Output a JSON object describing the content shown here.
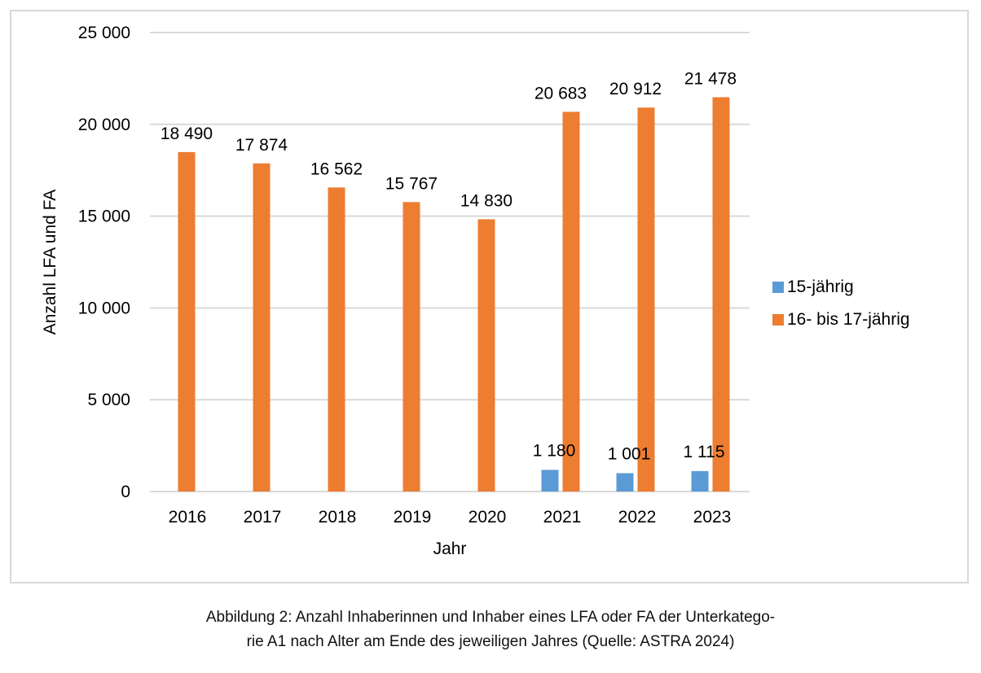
{
  "chart_data": {
    "type": "bar",
    "title": "",
    "xlabel": "Jahr",
    "ylabel": "Anzahl LFA und FA",
    "ylim": [
      0,
      25000
    ],
    "yticks": [
      0,
      5000,
      10000,
      15000,
      20000,
      25000
    ],
    "ytick_labels": [
      "0",
      "5 000",
      "10 000",
      "15 000",
      "20 000",
      "25 000"
    ],
    "grid": true,
    "legend_position": "right",
    "categories": [
      "2016",
      "2017",
      "2018",
      "2019",
      "2020",
      "2021",
      "2022",
      "2023"
    ],
    "series": [
      {
        "name": "15-jährig",
        "color": "#5b9bd5",
        "values": [
          null,
          null,
          null,
          null,
          null,
          1180,
          1001,
          1115
        ],
        "labels": [
          "",
          "",
          "",
          "",
          "",
          "1 180",
          "1 001",
          "1 115"
        ]
      },
      {
        "name": "16- bis 17-jährig",
        "color": "#ed7d31",
        "values": [
          18490,
          17874,
          16562,
          15767,
          14830,
          20683,
          20912,
          21478
        ],
        "labels": [
          "18 490",
          "17 874",
          "16 562",
          "15 767",
          "14 830",
          "20 683",
          "20 912",
          "21 478"
        ]
      }
    ]
  },
  "caption": {
    "line1": "Abbildung 2: Anzahl Inhaberinnen und Inhaber eines LFA oder FA der Unterkatego-",
    "line2": "rie A1 nach Alter am Ende des jeweiligen Jahres (Quelle: ASTRA 2024)"
  }
}
